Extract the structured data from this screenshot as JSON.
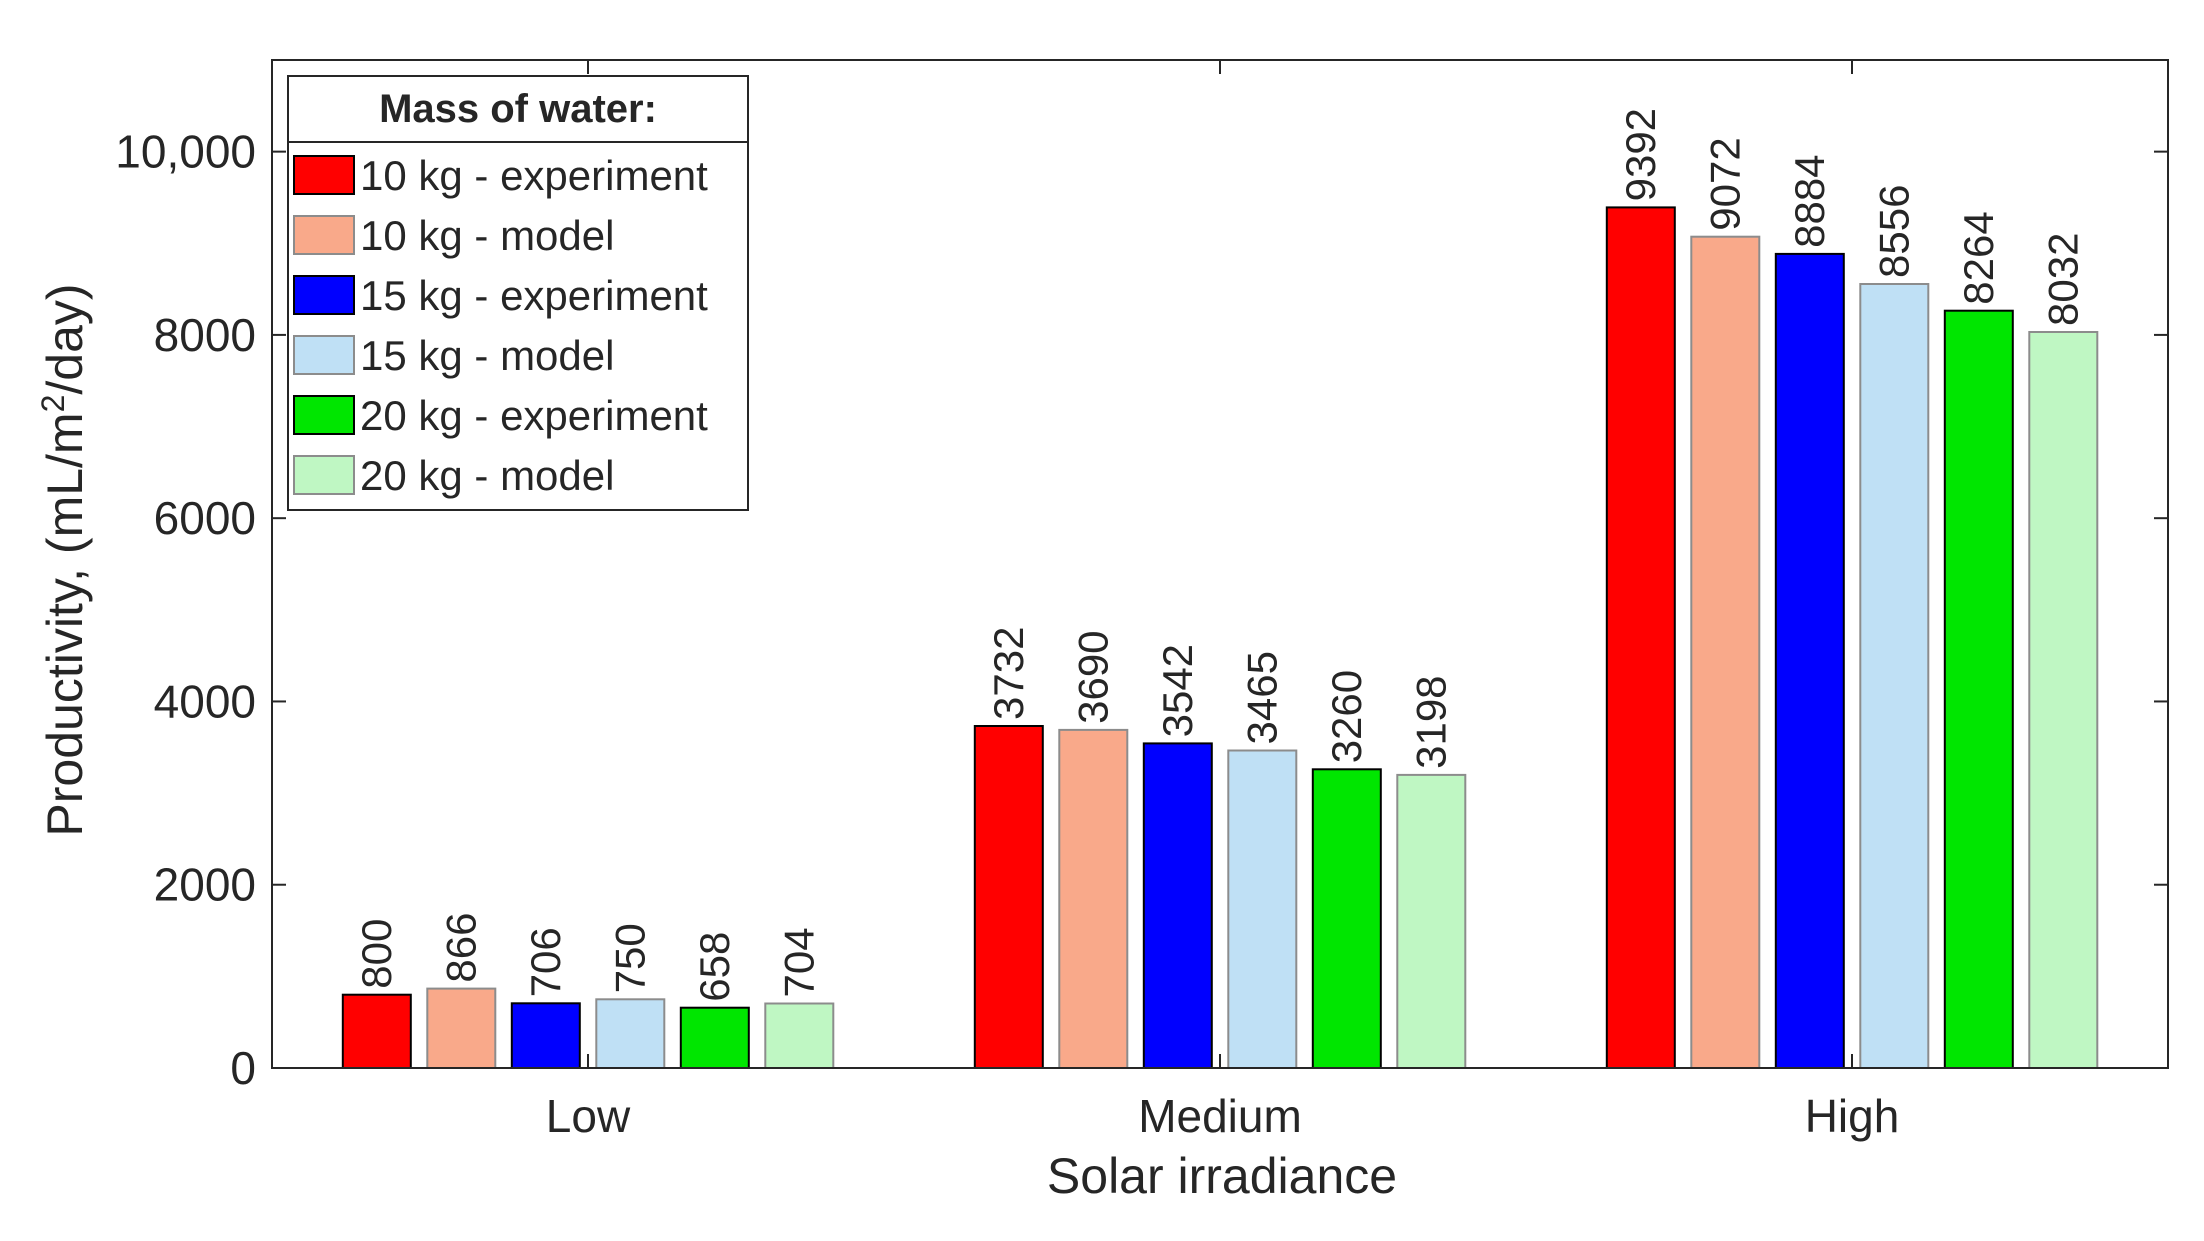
{
  "chart_data": {
    "type": "bar",
    "categories": [
      "Low",
      "Medium",
      "High"
    ],
    "series": [
      {
        "name": "10 kg - experiment",
        "color": "#ff0000",
        "values": [
          800,
          3732,
          9392
        ]
      },
      {
        "name": "10 kg - model",
        "color": "#f9a98a",
        "values": [
          866,
          3690,
          9072
        ]
      },
      {
        "name": "15 kg - experiment",
        "color": "#0000ff",
        "values": [
          706,
          3542,
          8884
        ]
      },
      {
        "name": "15 kg - model",
        "color": "#bfe0f5",
        "values": [
          750,
          3465,
          8556
        ]
      },
      {
        "name": "20 kg - experiment",
        "color": "#00e600",
        "values": [
          658,
          3260,
          8264
        ]
      },
      {
        "name": "20 kg - model",
        "color": "#bff7c3",
        "values": [
          704,
          3198,
          8032
        ]
      }
    ],
    "data_labels": [
      [
        "800",
        "3732",
        "9392"
      ],
      [
        "866",
        "3690",
        "9072"
      ],
      [
        "706",
        "3542",
        "8884"
      ],
      [
        "750",
        "3465",
        "8556"
      ],
      [
        "658",
        "3260",
        "8264"
      ],
      [
        "704",
        "3198",
        "8032"
      ]
    ],
    "xlabel": "Solar irradiance",
    "ylabel_main": "Productivity, (mL/m",
    "ylabel_sup": "2",
    "ylabel_end": "/day)",
    "ylim": [
      0,
      11000
    ],
    "yticks": [
      0,
      2000,
      4000,
      6000,
      8000,
      10000
    ],
    "ytick_labels": [
      "0",
      "2000",
      "4000",
      "6000",
      "8000",
      "10,000"
    ],
    "legend": {
      "title": "Mass of water:",
      "position": "top-left"
    },
    "grid": false
  }
}
